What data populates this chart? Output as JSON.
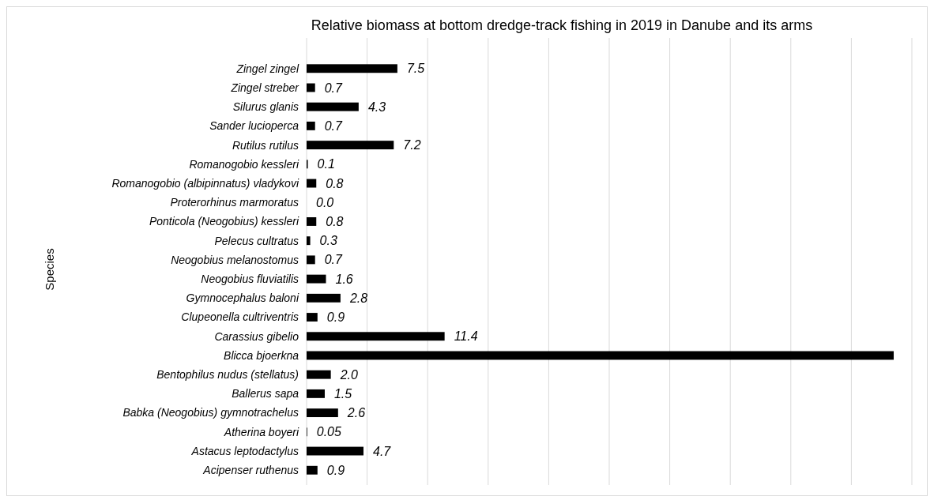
{
  "chart_data": {
    "type": "bar",
    "orientation": "horizontal",
    "title": "Relative biomass at bottom dredge-track fishing in 2019 in Danube and its arms",
    "ylabel": "Species",
    "categories": [
      "Zingel zingel",
      "Zingel streber",
      "Silurus glanis",
      "Sander lucioperca",
      "Rutilus rutilus",
      "Romanogobio kessleri",
      "Romanogobio (albipinnatus) vladykovi",
      "Proterorhinus marmoratus",
      "Ponticola (Neogobius) kessleri",
      "Pelecus cultratus",
      "Neogobius melanostomus",
      "Neogobius fluviatilis",
      "Gymnocephalus baloni",
      "Clupeonella cultriventris",
      "Carassius gibelio",
      "Blicca bjoerkna",
      "Bentophilus nudus (stellatus)",
      "Ballerus sapa",
      "Babka (Neogobius) gymnotrachelus",
      "Atherina boyeri",
      "Astacus leptodactylus",
      "Acipenser ruthenus"
    ],
    "values": [
      7.5,
      0.7,
      4.3,
      0.7,
      7.2,
      0.1,
      0.8,
      0.0,
      0.8,
      0.3,
      0.7,
      1.6,
      2.8,
      0.9,
      11.4,
      48.5,
      2.0,
      1.5,
      2.6,
      0.05,
      4.7,
      0.9
    ],
    "value_labels": [
      "7.5",
      "0.7",
      "4.3",
      "0.7",
      "7.2",
      "0.1",
      "0.8",
      "0.0",
      "0.8",
      "0.3",
      "0.7",
      "1.6",
      "2.8",
      "0.9",
      "11.4",
      null,
      "2.0",
      "1.5",
      "2.6",
      "0.05",
      "4.7",
      "0.9"
    ],
    "color": "#000000",
    "xlim": [
      0,
      50
    ],
    "xticks": [
      {
        "value": 0,
        "label": null
      },
      {
        "value": 5,
        "label": null
      },
      {
        "value": 10,
        "label": null
      },
      {
        "value": 15,
        "label": null
      },
      {
        "value": 20,
        "label": null
      },
      {
        "value": 25,
        "label": null
      },
      {
        "value": 30,
        "label": null
      },
      {
        "value": 35,
        "label": null
      },
      {
        "value": 40,
        "label": null
      },
      {
        "value": 45,
        "label": null
      },
      {
        "value": 50,
        "label": null
      }
    ],
    "grid": "x"
  }
}
